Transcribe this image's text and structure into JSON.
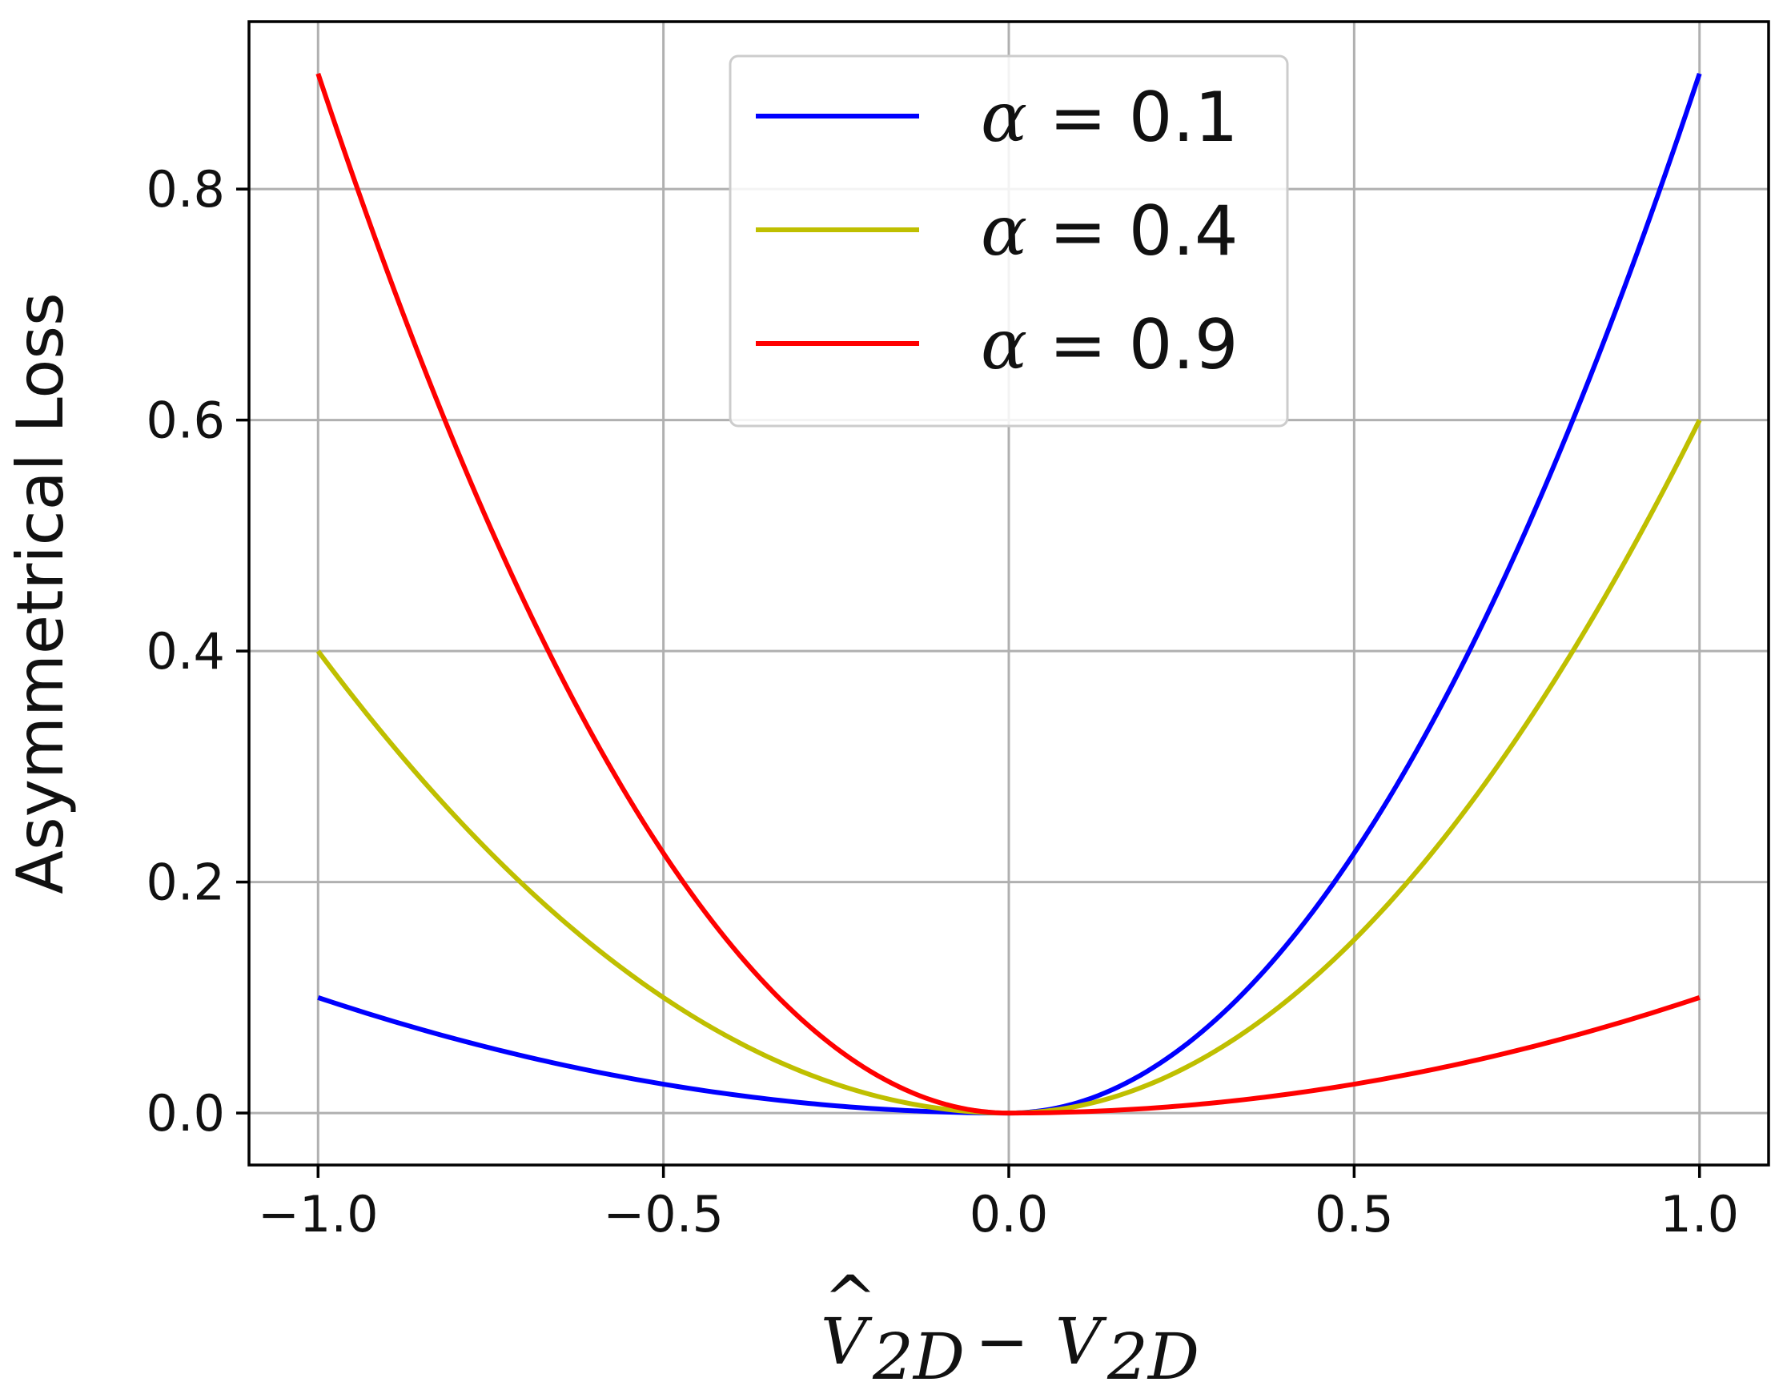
{
  "chart_data": {
    "type": "line",
    "title": "",
    "xlabel": {
      "hat_symbol": "^",
      "var": "V",
      "sub": "2D",
      "operator": "−"
    },
    "ylabel": "Asymmetrical Loss",
    "xlim": [
      -1.1,
      1.1
    ],
    "ylim": [
      -0.045,
      0.945
    ],
    "xticks": [
      -1.0,
      -0.5,
      0.0,
      0.5,
      1.0
    ],
    "xtick_labels": [
      "−1.0",
      "−0.5",
      "0.0",
      "0.5",
      "1.0"
    ],
    "yticks": [
      0.0,
      0.2,
      0.4,
      0.6,
      0.8
    ],
    "ytick_labels": [
      "0.0",
      "0.2",
      "0.4",
      "0.6",
      "0.8"
    ],
    "grid": true,
    "legend_position": "top-center",
    "x_range": [
      -1.0,
      1.0
    ],
    "series": [
      {
        "name": "α = 0.1",
        "symbol": "α",
        "value_text": "0.1",
        "alpha": 0.1,
        "color": "#0000ff",
        "x": [
          -1.0,
          -0.5,
          0.0,
          0.5,
          1.0
        ],
        "y": [
          0.1,
          0.025,
          0.0,
          0.225,
          0.9
        ]
      },
      {
        "name": "α = 0.4",
        "symbol": "α",
        "value_text": "0.4",
        "alpha": 0.4,
        "color": "#bfbf00",
        "x": [
          -1.0,
          -0.5,
          0.0,
          0.5,
          1.0
        ],
        "y": [
          0.4,
          0.1,
          0.0,
          0.15,
          0.6
        ]
      },
      {
        "name": "α = 0.9",
        "symbol": "α",
        "value_text": "0.9",
        "alpha": 0.9,
        "color": "#ff0000",
        "x": [
          -1.0,
          -0.5,
          0.0,
          0.5,
          1.0
        ],
        "y": [
          0.9,
          0.225,
          0.0,
          0.025,
          0.1
        ]
      }
    ]
  }
}
